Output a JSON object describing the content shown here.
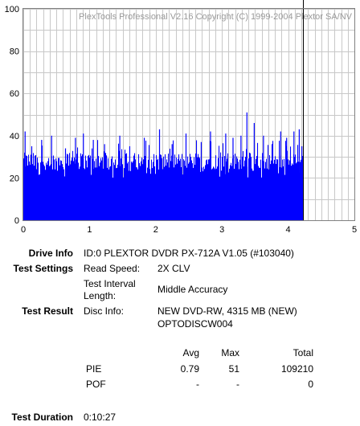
{
  "chart_data": {
    "type": "bar",
    "title": "PlexTools Professional V2.16 Copyright (C) 1999-2004 Plextor SA/NV",
    "xlim": [
      0,
      5
    ],
    "ylim": [
      0,
      100
    ],
    "x_ticks": [
      "0",
      "1",
      "2",
      "3",
      "4",
      "5"
    ],
    "y_ticks": [
      "0",
      "20",
      "40",
      "60",
      "80",
      "100"
    ],
    "grid": true,
    "series": [
      {
        "color": "#0000ff",
        "x_end": 4.22,
        "baseline_values": [
          24,
          32
        ],
        "peak_values": [
          {
            "x": 0.02,
            "y": 42
          },
          {
            "x": 0.12,
            "y": 35
          },
          {
            "x": 0.27,
            "y": 38
          },
          {
            "x": 0.42,
            "y": 40
          },
          {
            "x": 0.63,
            "y": 34
          },
          {
            "x": 0.78,
            "y": 39
          },
          {
            "x": 0.9,
            "y": 41
          },
          {
            "x": 1.05,
            "y": 38
          },
          {
            "x": 1.22,
            "y": 36
          },
          {
            "x": 1.45,
            "y": 40
          },
          {
            "x": 1.6,
            "y": 35
          },
          {
            "x": 1.82,
            "y": 39
          },
          {
            "x": 2.05,
            "y": 43
          },
          {
            "x": 2.24,
            "y": 36
          },
          {
            "x": 2.45,
            "y": 41
          },
          {
            "x": 2.68,
            "y": 37
          },
          {
            "x": 2.82,
            "y": 42
          },
          {
            "x": 3.05,
            "y": 41
          },
          {
            "x": 3.16,
            "y": 39
          },
          {
            "x": 3.28,
            "y": 40
          },
          {
            "x": 3.37,
            "y": 51
          },
          {
            "x": 3.48,
            "y": 46
          },
          {
            "x": 3.62,
            "y": 40
          },
          {
            "x": 3.75,
            "y": 36
          },
          {
            "x": 3.88,
            "y": 42
          },
          {
            "x": 3.97,
            "y": 39
          },
          {
            "x": 4.08,
            "y": 42
          },
          {
            "x": 4.16,
            "y": 43
          },
          {
            "x": 4.2,
            "y": 35
          }
        ]
      }
    ],
    "marker_x": 4.22,
    "marker_color": "#000000"
  },
  "info": {
    "drive_info_label": "Drive Info",
    "drive_info_value": "ID:0 PLEXTOR DVDR PX-712A V1.05 (#103040)",
    "test_settings_label": "Test Settings",
    "read_speed_label": "Read Speed:",
    "read_speed_value": "2X CLV",
    "test_interval_label_1": "Test Interval",
    "test_interval_label_2": "Length:",
    "test_interval_value": "Middle Accuracy",
    "test_result_label": "Test Result",
    "disc_info_label": "Disc Info:",
    "disc_info_value_1": "NEW DVD-RW, 4315 MB (NEW)",
    "disc_info_value_2": "OPTODISCW004",
    "test_duration_label": "Test Duration",
    "test_duration_value": "0:10:27"
  },
  "results_table": {
    "headers": [
      "Avg",
      "Max",
      "Total"
    ],
    "rows": [
      {
        "name": "PIE",
        "avg": "0.79",
        "max": "51",
        "total": "109210"
      },
      {
        "name": "POF",
        "avg": "-",
        "max": "-",
        "total": "0"
      }
    ]
  }
}
